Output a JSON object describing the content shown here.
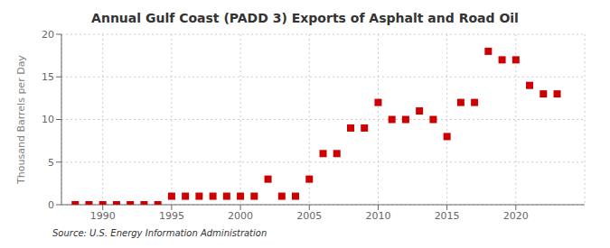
{
  "chart_data": {
    "type": "scatter",
    "title": "Annual Gulf Coast (PADD 3) Exports of Asphalt and Road Oil",
    "ylabel": "Thousand Barrels per Day",
    "source": "Source: U.S. Energy Information Administration",
    "x": [
      1988,
      1989,
      1990,
      1991,
      1992,
      1993,
      1994,
      1995,
      1996,
      1997,
      1998,
      1999,
      2000,
      2001,
      2002,
      2003,
      2004,
      2005,
      2006,
      2007,
      2008,
      2009,
      2010,
      2011,
      2012,
      2013,
      2014,
      2015,
      2016,
      2017,
      2018,
      2019,
      2020,
      2021,
      2022,
      2023
    ],
    "values": [
      0,
      0,
      0,
      0,
      0,
      0,
      0,
      1,
      1,
      1,
      1,
      1,
      1,
      1,
      3,
      1,
      1,
      3,
      6,
      6,
      9,
      9,
      12,
      10,
      10,
      11,
      10,
      8,
      12,
      12,
      18,
      17,
      17,
      14,
      13,
      13
    ],
    "color": "#cc0000",
    "marker": "square",
    "xlim": [
      1987,
      2025
    ],
    "xticks": [
      1990,
      1995,
      2000,
      2005,
      2010,
      2015,
      2020
    ],
    "ylim": [
      0,
      20
    ],
    "yticks": [
      0,
      5,
      10,
      15,
      20
    ],
    "grid": true
  }
}
